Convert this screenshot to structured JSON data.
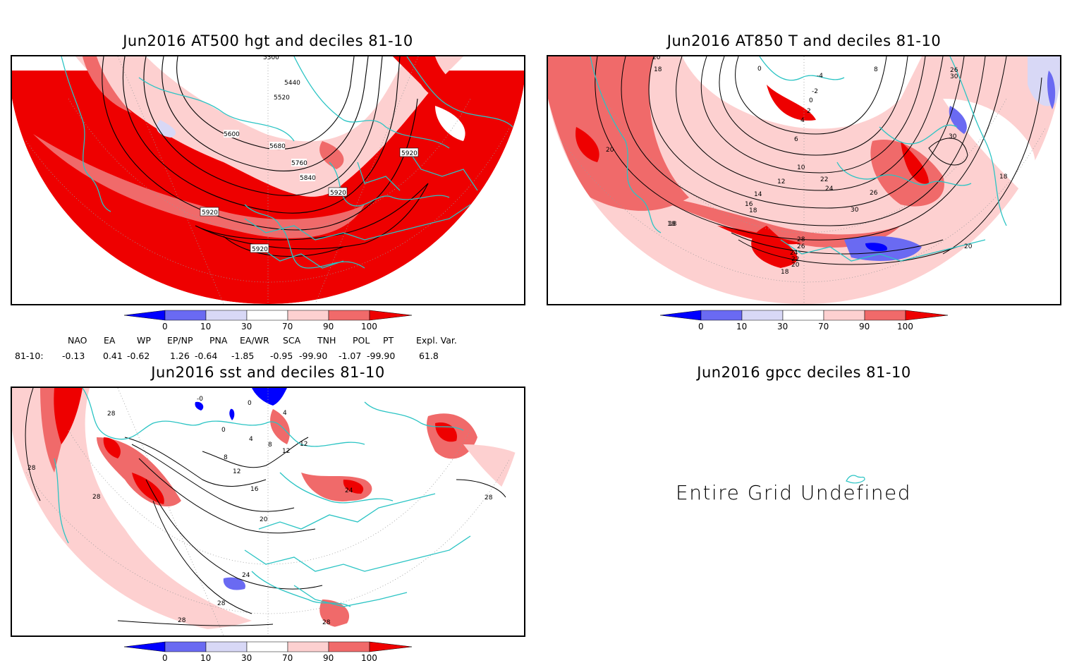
{
  "panels": [
    {
      "id": "z500",
      "title": "Jun2016 AT500 hgt and deciles 81-10",
      "contour_labels": [
        "5440",
        "5520",
        "5600",
        "5680",
        "5760",
        "5840",
        "5920",
        "5920",
        "5920",
        "5920",
        "5300"
      ]
    },
    {
      "id": "t850",
      "title": "Jun2016 AT850 T and deciles 81-10",
      "contour_labels": [
        "20",
        "18",
        "20",
        "18",
        "18",
        "10",
        "12",
        "14",
        "16",
        "18",
        "6",
        "4",
        "2",
        "0",
        "-2",
        "-4",
        "8",
        "22",
        "24",
        "26",
        "30",
        "28",
        "26",
        "24",
        "22",
        "20",
        "18",
        "30",
        "30",
        "18",
        "20",
        "26",
        "0"
      ]
    },
    {
      "id": "sst",
      "title": "Jun2016 sst and deciles 81-10",
      "contour_labels": [
        "28",
        "28",
        "28",
        "8",
        "12",
        "16",
        "20",
        "24",
        "28",
        "28",
        "28",
        "0",
        "4",
        "4",
        "8",
        "12",
        "12",
        "0",
        "24",
        "28",
        "-0"
      ]
    },
    {
      "id": "gpcc",
      "title": "Jun2016 gpcc deciles 81-10",
      "message": "Entire Grid Undefined"
    }
  ],
  "colorbar": {
    "ticks": [
      "0",
      "10",
      "30",
      "70",
      "90",
      "100"
    ],
    "colors": [
      "#0000ff",
      "#6a6af2",
      "#d8d8f6",
      "#ffffff",
      "#fdd0d0",
      "#f06a6a",
      "#ee0000"
    ]
  },
  "teleconnections": {
    "row_label": "81-10:",
    "headers": [
      "NAO",
      "EA",
      "WP",
      "EP/NP",
      "PNA",
      "EA/WR",
      "SCA",
      "TNH",
      "POL",
      "PT",
      "Expl. Var."
    ],
    "values": [
      "-0.13",
      "0.41",
      "-0.62",
      "1.26",
      "-0.64",
      "-1.85",
      "-0.95",
      "-99.90",
      "-1.07",
      "-99.90",
      "61.8"
    ]
  },
  "colors": {
    "coast": "#2bc4c4",
    "warm_high": "#ee0000",
    "warm_mid": "#f06a6a",
    "warm_low": "#fdd0d0",
    "cold_high": "#0000ff",
    "cold_mid": "#6a6af2",
    "cold_low": "#d8d8f6"
  }
}
